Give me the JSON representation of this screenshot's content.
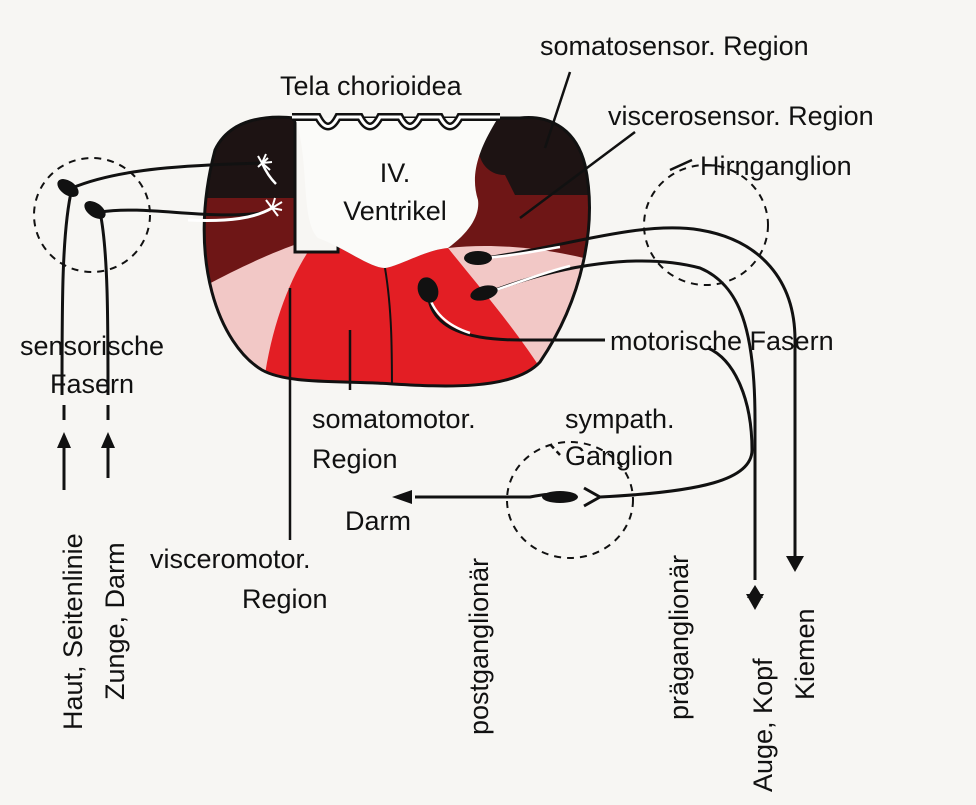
{
  "labels": {
    "tela": "Tela chorioidea",
    "ventrikel_1": "IV.",
    "ventrikel_2": "Ventrikel",
    "somatosensor": "somatosensor. Region",
    "viscerosensor": "viscerosensor. Region",
    "hirnganglion": "Hirnganglion",
    "sensorische_1": "sensorische",
    "sensorische_2": "Fasern",
    "motorische": "motorische Fasern",
    "somatomotor_1": "somatomotor.",
    "somatomotor_2": "Region",
    "visceromotor_1": "visceromotor.",
    "visceromotor_2": "Region",
    "sympath_1": "sympath.",
    "sympath_2": "Ganglion",
    "darm": "Darm",
    "haut": "Haut, Seitenlinie",
    "zunge": "Zunge, Darm",
    "postganglionaer": "postganglionär",
    "praeganglionaer": "präganglionär",
    "auge": "Auge, Kopf",
    "kiemen": "Kiemen"
  },
  "colors": {
    "somatosensory": "#1d1313",
    "viscerosensory": "#6e1616",
    "visceromotor": "#f2c8c6",
    "somatomotor": "#e31e24",
    "background": "#f7f6f3",
    "line": "#111111"
  }
}
